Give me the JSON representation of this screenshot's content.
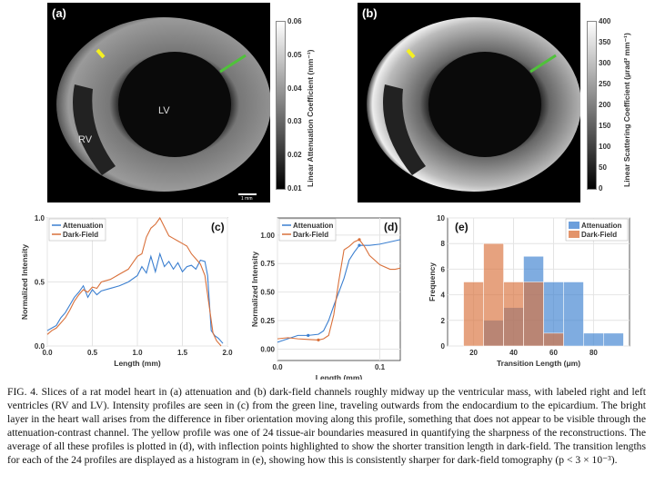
{
  "panels": {
    "a": {
      "label": "(a)",
      "lv": "LV",
      "rv": "RV",
      "scale": "1 mm",
      "colorbar_title": "Linear Attenuation Coefficient (mm⁻¹)",
      "colorbar_ticks": [
        "0.06",
        "0.05",
        "0.04",
        "0.03",
        "0.02",
        "0.01"
      ]
    },
    "b": {
      "label": "(b)",
      "colorbar_title": "Linear Scattering Coefficient (μrad² mm⁻¹)",
      "colorbar_ticks": [
        "400",
        "350",
        "300",
        "250",
        "200",
        "150",
        "100",
        "50",
        "0"
      ]
    }
  },
  "colors": {
    "attenuation": "#3b7fd0",
    "dark_field": "#d9703a",
    "profile_green": "#4fc23a",
    "profile_yellow": "#f5f020"
  },
  "chart_data": [
    {
      "type": "line",
      "label": "(c)",
      "xlabel": "Length (mm)",
      "ylabel": "Normalized Intensity",
      "xlim": [
        0,
        2
      ],
      "ylim": [
        0,
        1
      ],
      "xticks": [
        "0.0",
        "0.5",
        "1.0",
        "1.5",
        "2.0"
      ],
      "yticks": [
        "0.0",
        "0.5",
        "1.0"
      ],
      "legend": "top-left",
      "grid": true,
      "series": [
        {
          "name": "Attenuation",
          "x": [
            0,
            0.05,
            0.1,
            0.15,
            0.2,
            0.25,
            0.3,
            0.35,
            0.4,
            0.45,
            0.5,
            0.55,
            0.6,
            0.7,
            0.8,
            0.9,
            1.0,
            1.05,
            1.1,
            1.15,
            1.2,
            1.25,
            1.3,
            1.35,
            1.4,
            1.45,
            1.5,
            1.55,
            1.6,
            1.65,
            1.7,
            1.75,
            1.78,
            1.82,
            1.86,
            1.9,
            1.95
          ],
          "y": [
            0.12,
            0.14,
            0.16,
            0.22,
            0.26,
            0.32,
            0.38,
            0.42,
            0.47,
            0.38,
            0.44,
            0.4,
            0.43,
            0.45,
            0.47,
            0.5,
            0.55,
            0.62,
            0.57,
            0.7,
            0.58,
            0.72,
            0.62,
            0.66,
            0.6,
            0.65,
            0.58,
            0.62,
            0.63,
            0.6,
            0.67,
            0.66,
            0.55,
            0.12,
            0.08,
            0.06,
            0.02
          ]
        },
        {
          "name": "Dark-Field",
          "x": [
            0,
            0.05,
            0.1,
            0.15,
            0.2,
            0.25,
            0.3,
            0.35,
            0.4,
            0.45,
            0.5,
            0.55,
            0.6,
            0.7,
            0.8,
            0.9,
            0.95,
            1.0,
            1.05,
            1.1,
            1.15,
            1.2,
            1.25,
            1.3,
            1.35,
            1.4,
            1.45,
            1.5,
            1.55,
            1.6,
            1.65,
            1.7,
            1.75,
            1.8,
            1.84,
            1.88,
            1.93
          ],
          "y": [
            0.09,
            0.12,
            0.14,
            0.18,
            0.22,
            0.28,
            0.35,
            0.4,
            0.44,
            0.42,
            0.46,
            0.45,
            0.5,
            0.52,
            0.56,
            0.6,
            0.65,
            0.7,
            0.72,
            0.85,
            0.92,
            0.95,
            1.0,
            0.93,
            0.86,
            0.84,
            0.82,
            0.8,
            0.78,
            0.72,
            0.68,
            0.64,
            0.55,
            0.3,
            0.1,
            0.04,
            0
          ]
        }
      ]
    },
    {
      "type": "line",
      "label": "(d)",
      "xlabel": "Length (mm)",
      "ylabel": "Normalized Intensity",
      "xlim": [
        0,
        0.12
      ],
      "ylim": [
        -0.1,
        1.15
      ],
      "xticks": [
        "0.0",
        "0.1"
      ],
      "yticks": [
        "0.00",
        "0.25",
        "0.50",
        "0.75",
        "1.00"
      ],
      "legend": "top-left",
      "grid": true,
      "series": [
        {
          "name": "Attenuation",
          "x": [
            0,
            0.01,
            0.02,
            0.03,
            0.04,
            0.045,
            0.05,
            0.055,
            0.06,
            0.065,
            0.07,
            0.075,
            0.08,
            0.09,
            0.1,
            0.11,
            0.12
          ],
          "y": [
            0.06,
            0.09,
            0.12,
            0.12,
            0.13,
            0.16,
            0.25,
            0.38,
            0.5,
            0.62,
            0.78,
            0.85,
            0.91,
            0.91,
            0.92,
            0.94,
            0.96
          ],
          "inflection": [
            [
              0.03,
              0.12
            ],
            [
              0.08,
              0.91
            ]
          ]
        },
        {
          "name": "Dark-Field",
          "x": [
            0,
            0.01,
            0.02,
            0.03,
            0.04,
            0.045,
            0.05,
            0.055,
            0.06,
            0.065,
            0.07,
            0.075,
            0.08,
            0.085,
            0.09,
            0.1,
            0.11,
            0.115,
            0.12
          ],
          "y": [
            0.09,
            0.1,
            0.09,
            0.085,
            0.08,
            0.09,
            0.12,
            0.3,
            0.6,
            0.87,
            0.9,
            0.94,
            0.96,
            0.9,
            0.82,
            0.74,
            0.7,
            0.7,
            0.71
          ],
          "inflection": [
            [
              0.04,
              0.08
            ],
            [
              0.08,
              0.96
            ]
          ]
        }
      ]
    },
    {
      "type": "bar",
      "label": "(e)",
      "xlabel": "Transition Length (μm)",
      "ylabel": "Frequency",
      "xlim": [
        7,
        98
      ],
      "ylim": [
        0,
        10
      ],
      "xticks": [
        "20",
        "40",
        "60",
        "80"
      ],
      "yticks": [
        "0",
        "2",
        "4",
        "6",
        "8",
        "10"
      ],
      "legend": "top-right",
      "grid": true,
      "bin_edges": [
        15,
        25,
        35,
        45,
        55,
        65,
        75,
        85,
        95
      ],
      "series": [
        {
          "name": "Attenuation",
          "counts": [
            0,
            2,
            3,
            7,
            5,
            5,
            1,
            1
          ]
        },
        {
          "name": "Dark-Field",
          "counts": [
            5,
            8,
            5,
            5,
            1,
            0,
            0,
            0
          ]
        }
      ]
    }
  ],
  "caption": "FIG. 4.   Slices of a rat model heart in (a) attenuation and (b) dark-field channels roughly midway up the ventricular mass, with labeled right and left ventricles (RV and LV). Intensity profiles are seen in (c) from the green line, traveling outwards from the endocardium to the epicardium. The bright layer in the heart wall arises from the difference in fiber orientation moving along this profile, something that does not appear to be visible through the attenuation-contrast channel. The yellow profile was one of 24 tissue-air boundaries measured in quantifying the sharpness of the reconstructions. The average of all these profiles is plotted in (d), with inflection points highlighted to show the shorter transition length in dark-field. The transition lengths for each of the 24 profiles are displayed as a histogram in (e), showing how this is consistently sharper for dark-field tomography (p < 3 × 10⁻³)."
}
